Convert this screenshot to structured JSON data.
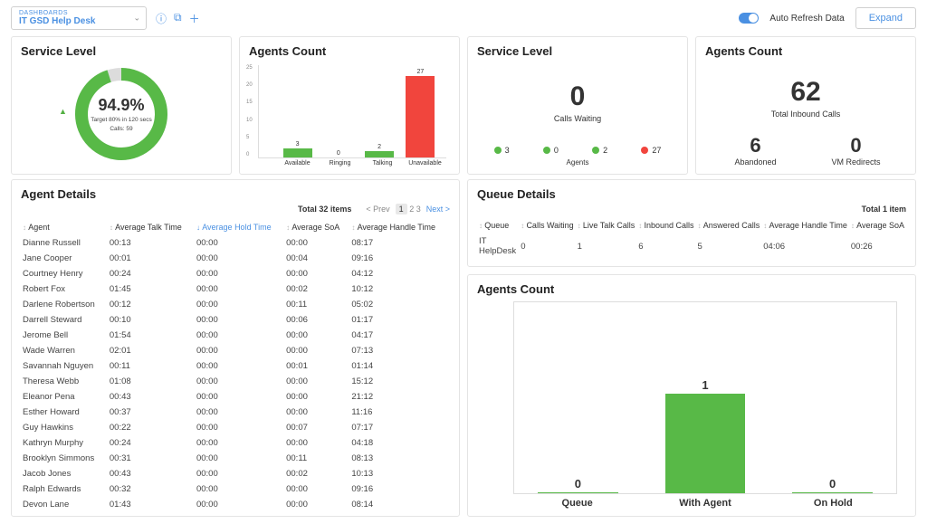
{
  "colors": {
    "brand_blue": "#4a90e2",
    "green": "#58b947",
    "red": "#f1453d",
    "light_gray": "#e4e4e4",
    "donut_bg": "#dcdcdc"
  },
  "topbar": {
    "select_label_small": "DASHBOARDS",
    "select_value": "IT GSD Help Desk",
    "auto_refresh_label": "Auto Refresh Data",
    "expand_label": "Expand"
  },
  "service_level_donut": {
    "title": "Service Level",
    "percent": "94.9%",
    "subtitle_line1": "Target 80% in 120 secs",
    "subtitle_line2": "Calls: 59",
    "value_pct": 94.9,
    "ring_color": "#58b947",
    "ring_bg": "#dcdcdc"
  },
  "agents_count_bars": {
    "title": "Agents Count",
    "ymax": 27,
    "yticks": [
      "25",
      "20",
      "15",
      "10",
      "5",
      "0"
    ],
    "bars": [
      {
        "label": "Available",
        "value": 3,
        "color": "#58b947"
      },
      {
        "label": "Ringing",
        "value": 0,
        "color": "#58b947"
      },
      {
        "label": "Talking",
        "value": 2,
        "color": "#58b947"
      },
      {
        "label": "Unavailable",
        "value": 27,
        "color": "#f1453d"
      }
    ]
  },
  "calls_waiting_card": {
    "title": "Service Level",
    "big_value": "0",
    "big_label": "Calls Waiting",
    "agents_label": "Agents",
    "dots": [
      {
        "value": "3",
        "color": "#58b947"
      },
      {
        "value": "0",
        "color": "#58b947"
      },
      {
        "value": "2",
        "color": "#58b947"
      },
      {
        "value": "27",
        "color": "#f1453d"
      }
    ]
  },
  "inbound_card": {
    "title": "Agents Count",
    "big_value": "62",
    "big_label": "Total Inbound Calls",
    "bottom": [
      {
        "value": "6",
        "label": "Abandoned"
      },
      {
        "value": "0",
        "label": "VM Redirects"
      }
    ]
  },
  "agent_table": {
    "title": "Agent Details",
    "total_text": "Total 32 items",
    "pager": {
      "prev": "< Prev",
      "pages": [
        "1",
        "2",
        "3"
      ],
      "next": "Next >"
    },
    "columns": [
      "Agent",
      "Average Talk Time",
      "Average Hold Time",
      "Average SoA",
      "Average Handle Time"
    ],
    "sorted_col_index": 2,
    "rows": [
      [
        "Dianne Russell",
        "00:13",
        "00:00",
        "00:00",
        "08:17"
      ],
      [
        "Jane Cooper",
        "00:01",
        "00:00",
        "00:04",
        "09:16"
      ],
      [
        "Courtney Henry",
        "00:24",
        "00:00",
        "00:00",
        "04:12"
      ],
      [
        "Robert Fox",
        "01:45",
        "00:00",
        "00:02",
        "10:12"
      ],
      [
        "Darlene Robertson",
        "00:12",
        "00:00",
        "00:11",
        "05:02"
      ],
      [
        "Darrell Steward",
        "00:10",
        "00:00",
        "00:06",
        "01:17"
      ],
      [
        "Jerome Bell",
        "01:54",
        "00:00",
        "00:00",
        "04:17"
      ],
      [
        "Wade Warren",
        "02:01",
        "00:00",
        "00:00",
        "07:13"
      ],
      [
        "Savannah Nguyen",
        "00:11",
        "00:00",
        "00:01",
        "01:14"
      ],
      [
        "Theresa Webb",
        "01:08",
        "00:00",
        "00:00",
        "15:12"
      ],
      [
        "Eleanor Pena",
        "00:43",
        "00:00",
        "00:00",
        "21:12"
      ],
      [
        "Esther Howard",
        "00:37",
        "00:00",
        "00:00",
        "11:16"
      ],
      [
        "Guy Hawkins",
        "00:22",
        "00:00",
        "00:07",
        "07:17"
      ],
      [
        "Kathryn Murphy",
        "00:24",
        "00:00",
        "00:00",
        "04:18"
      ],
      [
        "Brooklyn Simmons",
        "00:31",
        "00:00",
        "00:11",
        "08:13"
      ],
      [
        "Jacob Jones",
        "00:43",
        "00:00",
        "00:02",
        "10:13"
      ],
      [
        "Ralph Edwards",
        "00:32",
        "00:00",
        "00:00",
        "09:16"
      ],
      [
        "Devon Lane",
        "01:43",
        "00:00",
        "00:00",
        "08:14"
      ]
    ]
  },
  "queue_table": {
    "title": "Queue Details",
    "total_text": "Total 1 item",
    "columns": [
      "Queue",
      "Calls Waiting",
      "Live Talk Calls",
      "Inbound Calls",
      "Answered Calls",
      "Average Handle Time",
      "Average SoA"
    ],
    "rows": [
      [
        "IT HelpDesk",
        "0",
        "1",
        "6",
        "5",
        "04:06",
        "00:26"
      ]
    ]
  },
  "agents_lower_chart": {
    "title": "Agents Count",
    "ymax": 1,
    "bars": [
      {
        "label": "Queue",
        "value": 0,
        "color": "#58b947"
      },
      {
        "label": "With Agent",
        "value": 1,
        "color": "#58b947"
      },
      {
        "label": "On Hold",
        "value": 0,
        "color": "#58b947"
      }
    ]
  }
}
